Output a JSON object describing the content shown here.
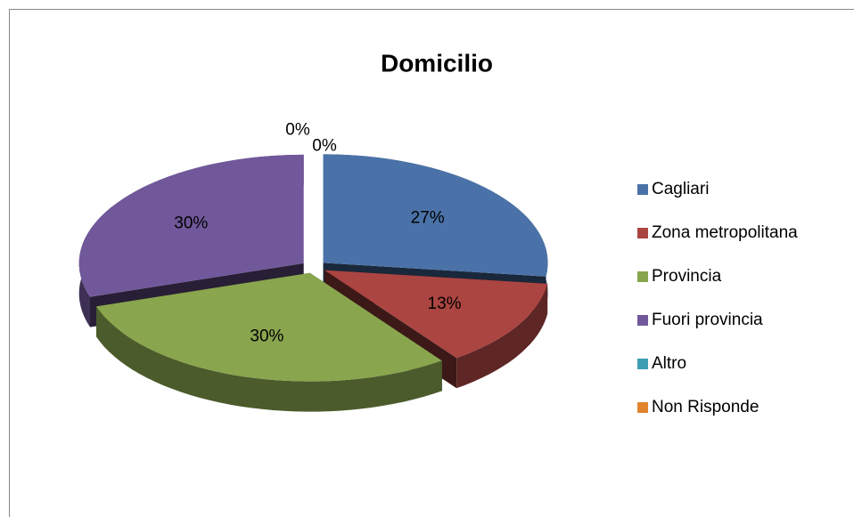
{
  "chart_data": {
    "type": "pie",
    "title": "Domicilio",
    "categories": [
      "Cagliari",
      "Zona metropolitana",
      "Provincia",
      "Fuori provincia",
      "Altro",
      "Non Risponde"
    ],
    "values": [
      27,
      13,
      30,
      30,
      0,
      0
    ],
    "value_labels": [
      "27%",
      "13%",
      "30%",
      "30%",
      "0%",
      "0%"
    ],
    "colors": [
      "#4a72a8",
      "#ab4542",
      "#89a54e",
      "#71589a",
      "#3f9db3",
      "#e2842e"
    ],
    "legend": "right"
  }
}
